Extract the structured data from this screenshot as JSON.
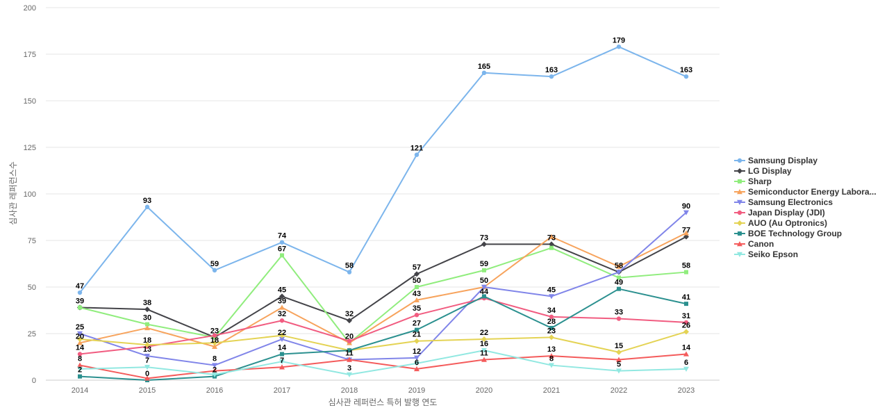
{
  "chart_data": {
    "type": "line",
    "title": "",
    "xlabel": "심사관 레퍼런스 특허 발행 연도",
    "ylabel": "심사관 레퍼런스수",
    "ylim": [
      0,
      200
    ],
    "yticks": [
      0,
      25,
      50,
      75,
      100,
      125,
      150,
      175,
      200
    ],
    "grid": true,
    "legend_position": "right",
    "x": [
      "2014",
      "2015",
      "2016",
      "2017",
      "2018",
      "2019",
      "2020",
      "2021",
      "2022",
      "2023"
    ],
    "series": [
      {
        "name": "Samsung Display",
        "color": "#7cb5ec",
        "marker": "circle",
        "values": [
          47,
          93,
          59,
          74,
          58,
          121,
          165,
          163,
          179,
          163
        ]
      },
      {
        "name": "LG Display",
        "color": "#434348",
        "marker": "diamond",
        "values": [
          39,
          38,
          23,
          45,
          32,
          57,
          73,
          73,
          58,
          77
        ]
      },
      {
        "name": "Sharp",
        "color": "#90ed7d",
        "marker": "square",
        "values": [
          39,
          30,
          23,
          67,
          20,
          50,
          59,
          71,
          55,
          58
        ]
      },
      {
        "name": "Semiconductor Energy Labora...",
        "color": "#f7a35c",
        "marker": "triangle",
        "values": [
          20,
          28,
          18,
          39,
          20,
          43,
          50,
          77,
          61,
          79
        ]
      },
      {
        "name": "Samsung Electronics",
        "color": "#8085e9",
        "marker": "triangle-down",
        "values": [
          25,
          13,
          8,
          22,
          11,
          12,
          50,
          45,
          58,
          90
        ]
      },
      {
        "name": "Japan Display (JDI)",
        "color": "#f15c80",
        "marker": "circle",
        "values": [
          14,
          18,
          24,
          32,
          21,
          35,
          44,
          34,
          33,
          31
        ]
      },
      {
        "name": "AUO (Au Optronics)",
        "color": "#e4d354",
        "marker": "diamond",
        "values": [
          22,
          19,
          20,
          24,
          16,
          21,
          22,
          23,
          15,
          26
        ]
      },
      {
        "name": "BOE Technology Group",
        "color": "#2b908f",
        "marker": "square",
        "values": [
          2,
          0,
          2,
          14,
          16,
          27,
          45,
          28,
          49,
          41
        ]
      },
      {
        "name": "Canon",
        "color": "#f45b5b",
        "marker": "triangle",
        "values": [
          8,
          1,
          5,
          7,
          11,
          6,
          11,
          13,
          11,
          14
        ]
      },
      {
        "name": "Seiko Epson",
        "color": "#91e8e1",
        "marker": "triangle-down",
        "values": [
          6,
          7,
          3,
          10,
          3,
          9,
          16,
          8,
          5,
          6
        ]
      }
    ],
    "data_labels": [
      {
        "x": "2014",
        "text": "47",
        "value": 47
      },
      {
        "x": "2014",
        "text": "39",
        "value": 39
      },
      {
        "x": "2014",
        "text": "25",
        "value": 25
      },
      {
        "x": "2014",
        "text": "20",
        "value": 20
      },
      {
        "x": "2014",
        "text": "14",
        "value": 14
      },
      {
        "x": "2014",
        "text": "8",
        "value": 8
      },
      {
        "x": "2014",
        "text": "2",
        "value": 2
      },
      {
        "x": "2015",
        "text": "93",
        "value": 93
      },
      {
        "x": "2015",
        "text": "38",
        "value": 38
      },
      {
        "x": "2015",
        "text": "30",
        "value": 30
      },
      {
        "x": "2015",
        "text": "18",
        "value": 18
      },
      {
        "x": "2015",
        "text": "13",
        "value": 13
      },
      {
        "x": "2015",
        "text": "7",
        "value": 7
      },
      {
        "x": "2015",
        "text": "0",
        "value": 0
      },
      {
        "x": "2016",
        "text": "59",
        "value": 59
      },
      {
        "x": "2016",
        "text": "23",
        "value": 23
      },
      {
        "x": "2016",
        "text": "18",
        "value": 18
      },
      {
        "x": "2016",
        "text": "8",
        "value": 8
      },
      {
        "x": "2016",
        "text": "2",
        "value": 2
      },
      {
        "x": "2017",
        "text": "74",
        "value": 74
      },
      {
        "x": "2017",
        "text": "67",
        "value": 67
      },
      {
        "x": "2017",
        "text": "45",
        "value": 45
      },
      {
        "x": "2017",
        "text": "39",
        "value": 39
      },
      {
        "x": "2017",
        "text": "32",
        "value": 32
      },
      {
        "x": "2017",
        "text": "22",
        "value": 22
      },
      {
        "x": "2017",
        "text": "14",
        "value": 14
      },
      {
        "x": "2017",
        "text": "7",
        "value": 7
      },
      {
        "x": "2018",
        "text": "58",
        "value": 58
      },
      {
        "x": "2018",
        "text": "32",
        "value": 32
      },
      {
        "x": "2018",
        "text": "20",
        "value": 20
      },
      {
        "x": "2018",
        "text": "11",
        "value": 11
      },
      {
        "x": "2018",
        "text": "3",
        "value": 3
      },
      {
        "x": "2019",
        "text": "121",
        "value": 121
      },
      {
        "x": "2019",
        "text": "57",
        "value": 57
      },
      {
        "x": "2019",
        "text": "50",
        "value": 50
      },
      {
        "x": "2019",
        "text": "43",
        "value": 43
      },
      {
        "x": "2019",
        "text": "35",
        "value": 35
      },
      {
        "x": "2019",
        "text": "27",
        "value": 27
      },
      {
        "x": "2019",
        "text": "21",
        "value": 21
      },
      {
        "x": "2019",
        "text": "12",
        "value": 12
      },
      {
        "x": "2019",
        "text": "6",
        "value": 6
      },
      {
        "x": "2020",
        "text": "165",
        "value": 165
      },
      {
        "x": "2020",
        "text": "73",
        "value": 73
      },
      {
        "x": "2020",
        "text": "59",
        "value": 59
      },
      {
        "x": "2020",
        "text": "50",
        "value": 50
      },
      {
        "x": "2020",
        "text": "44",
        "value": 44
      },
      {
        "x": "2020",
        "text": "22",
        "value": 22
      },
      {
        "x": "2020",
        "text": "16",
        "value": 16
      },
      {
        "x": "2020",
        "text": "11",
        "value": 11
      },
      {
        "x": "2021",
        "text": "163",
        "value": 163
      },
      {
        "x": "2021",
        "text": "73",
        "value": 73
      },
      {
        "x": "2021",
        "text": "45",
        "value": 45
      },
      {
        "x": "2021",
        "text": "34",
        "value": 34
      },
      {
        "x": "2021",
        "text": "28",
        "value": 28
      },
      {
        "x": "2021",
        "text": "23",
        "value": 23
      },
      {
        "x": "2021",
        "text": "13",
        "value": 13
      },
      {
        "x": "2021",
        "text": "8",
        "value": 8
      },
      {
        "x": "2022",
        "text": "179",
        "value": 179
      },
      {
        "x": "2022",
        "text": "58",
        "value": 58
      },
      {
        "x": "2022",
        "text": "49",
        "value": 49
      },
      {
        "x": "2022",
        "text": "33",
        "value": 33
      },
      {
        "x": "2022",
        "text": "15",
        "value": 15
      },
      {
        "x": "2022",
        "text": "5",
        "value": 5
      },
      {
        "x": "2023",
        "text": "163",
        "value": 163
      },
      {
        "x": "2023",
        "text": "90",
        "value": 90
      },
      {
        "x": "2023",
        "text": "77",
        "value": 77
      },
      {
        "x": "2023",
        "text": "58",
        "value": 58
      },
      {
        "x": "2023",
        "text": "41",
        "value": 41
      },
      {
        "x": "2023",
        "text": "31",
        "value": 31
      },
      {
        "x": "2023",
        "text": "26",
        "value": 26
      },
      {
        "x": "2023",
        "text": "14",
        "value": 14
      },
      {
        "x": "2023",
        "text": "6",
        "value": 6
      }
    ]
  }
}
